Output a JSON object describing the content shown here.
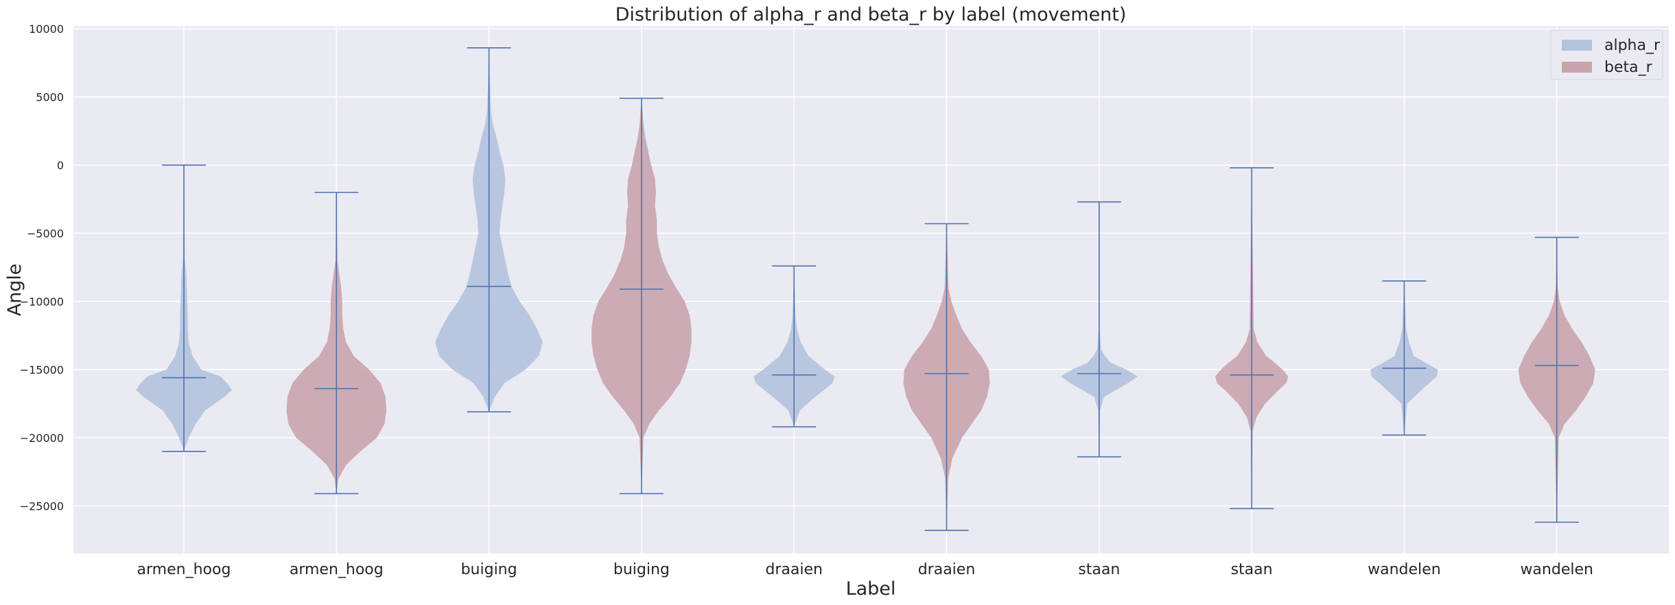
{
  "chart_data": {
    "type": "violin",
    "title": "Distribution of alpha_r and beta_r by label (movement)",
    "xlabel": "Label",
    "ylabel": "Angle",
    "ylim": [
      -28500,
      10200
    ],
    "yticks": [
      10000,
      5000,
      0,
      -5000,
      -10000,
      -15000,
      -20000,
      -25000
    ],
    "ytick_labels": [
      "10000",
      "5000",
      "0",
      "−5000",
      "−10000",
      "−15000",
      "−20000",
      "−25000"
    ],
    "categories": [
      "armen_hoog",
      "armen_hoog",
      "buiging",
      "buiging",
      "draaien",
      "draaien",
      "staan",
      "staan",
      "wandelen",
      "wandelen"
    ],
    "grid": true,
    "legend_position": "top-right",
    "series": [
      {
        "name": "alpha_r",
        "color": "#b4c2de",
        "violins": [
          {
            "position": 1,
            "min": -21000,
            "max": 0,
            "median": -15600,
            "profile": [
              [
                -21000,
                0
              ],
              [
                -20000,
                0.05
              ],
              [
                -19000,
                0.12
              ],
              [
                -18000,
                0.22
              ],
              [
                -17000,
                0.42
              ],
              [
                -16500,
                0.5
              ],
              [
                -16000,
                0.45
              ],
              [
                -15500,
                0.38
              ],
              [
                -15000,
                0.18
              ],
              [
                -14000,
                0.09
              ],
              [
                -13000,
                0.05
              ],
              [
                -12000,
                0.04
              ],
              [
                -11000,
                0.04
              ],
              [
                -10000,
                0.035
              ],
              [
                -9000,
                0.03
              ],
              [
                -8000,
                0.025
              ],
              [
                -7000,
                0.01
              ],
              [
                0,
                0
              ]
            ]
          },
          {
            "position": 3,
            "min": -18100,
            "max": 8600,
            "median": -8900,
            "profile": [
              [
                -18100,
                0
              ],
              [
                -17000,
                0.06
              ],
              [
                -16000,
                0.16
              ],
              [
                -15000,
                0.38
              ],
              [
                -14000,
                0.52
              ],
              [
                -13000,
                0.56
              ],
              [
                -12000,
                0.5
              ],
              [
                -11000,
                0.42
              ],
              [
                -10000,
                0.32
              ],
              [
                -9000,
                0.24
              ],
              [
                -8000,
                0.2
              ],
              [
                -7000,
                0.17
              ],
              [
                -6000,
                0.14
              ],
              [
                -5000,
                0.11
              ],
              [
                -4000,
                0.12
              ],
              [
                -3000,
                0.14
              ],
              [
                -2000,
                0.16
              ],
              [
                -1000,
                0.17
              ],
              [
                0,
                0.15
              ],
              [
                1000,
                0.11
              ],
              [
                2000,
                0.08
              ],
              [
                3000,
                0.04
              ],
              [
                4000,
                0.02
              ],
              [
                5000,
                0.015
              ],
              [
                6000,
                0.01
              ],
              [
                8600,
                0
              ]
            ]
          },
          {
            "position": 5,
            "min": -19200,
            "max": -7400,
            "median": -15400,
            "profile": [
              [
                -19200,
                0
              ],
              [
                -18000,
                0.06
              ],
              [
                -17000,
                0.22
              ],
              [
                -16000,
                0.4
              ],
              [
                -15500,
                0.42
              ],
              [
                -15000,
                0.32
              ],
              [
                -14000,
                0.15
              ],
              [
                -13000,
                0.07
              ],
              [
                -12000,
                0.03
              ],
              [
                -11000,
                0.015
              ],
              [
                -7400,
                0
              ]
            ]
          },
          {
            "position": 7,
            "min": -21400,
            "max": -2700,
            "median": -15300,
            "profile": [
              [
                -21400,
                0
              ],
              [
                -18000,
                0.01
              ],
              [
                -17000,
                0.05
              ],
              [
                -16000,
                0.3
              ],
              [
                -15500,
                0.4
              ],
              [
                -15000,
                0.28
              ],
              [
                -14500,
                0.12
              ],
              [
                -14000,
                0.06
              ],
              [
                -13500,
                0.02
              ],
              [
                -12000,
                0.005
              ],
              [
                -2700,
                0
              ]
            ]
          },
          {
            "position": 9,
            "min": -19800,
            "max": -8500,
            "median": -14900,
            "profile": [
              [
                -19800,
                0
              ],
              [
                -17500,
                0.03
              ],
              [
                -16500,
                0.18
              ],
              [
                -15500,
                0.34
              ],
              [
                -15000,
                0.35
              ],
              [
                -14500,
                0.22
              ],
              [
                -14000,
                0.1
              ],
              [
                -13000,
                0.05
              ],
              [
                -12000,
                0.02
              ],
              [
                -8500,
                0
              ]
            ]
          }
        ]
      },
      {
        "name": "beta_r",
        "color": "#c9a4ad",
        "violins": [
          {
            "position": 2,
            "min": -24100,
            "max": -2000,
            "median": -16400,
            "profile": [
              [
                -24100,
                0
              ],
              [
                -23000,
                0.02
              ],
              [
                -22000,
                0.1
              ],
              [
                -21000,
                0.25
              ],
              [
                -20000,
                0.42
              ],
              [
                -19000,
                0.5
              ],
              [
                -18000,
                0.52
              ],
              [
                -17000,
                0.51
              ],
              [
                -16000,
                0.46
              ],
              [
                -15000,
                0.34
              ],
              [
                -14000,
                0.18
              ],
              [
                -13000,
                0.1
              ],
              [
                -12000,
                0.07
              ],
              [
                -11000,
                0.06
              ],
              [
                -10000,
                0.06
              ],
              [
                -9000,
                0.05
              ],
              [
                -8000,
                0.03
              ],
              [
                -7000,
                0.01
              ],
              [
                -2000,
                0
              ]
            ]
          },
          {
            "position": 4,
            "min": -24100,
            "max": 4900,
            "median": -9100,
            "profile": [
              [
                -24100,
                0
              ],
              [
                -20000,
                0.02
              ],
              [
                -19000,
                0.08
              ],
              [
                -18000,
                0.18
              ],
              [
                -17000,
                0.3
              ],
              [
                -16000,
                0.4
              ],
              [
                -15000,
                0.46
              ],
              [
                -14000,
                0.5
              ],
              [
                -13000,
                0.52
              ],
              [
                -12000,
                0.52
              ],
              [
                -11000,
                0.5
              ],
              [
                -10000,
                0.45
              ],
              [
                -9000,
                0.36
              ],
              [
                -8000,
                0.28
              ],
              [
                -7000,
                0.22
              ],
              [
                -6000,
                0.18
              ],
              [
                -5000,
                0.16
              ],
              [
                -4000,
                0.16
              ],
              [
                -3000,
                0.14
              ],
              [
                -2000,
                0.15
              ],
              [
                -1000,
                0.14
              ],
              [
                0,
                0.1
              ],
              [
                1000,
                0.07
              ],
              [
                2000,
                0.04
              ],
              [
                3000,
                0.02
              ],
              [
                4900,
                0
              ]
            ]
          },
          {
            "position": 6,
            "min": -26800,
            "max": -4300,
            "median": -15300,
            "profile": [
              [
                -26800,
                0
              ],
              [
                -23000,
                0.015
              ],
              [
                -21500,
                0.06
              ],
              [
                -20000,
                0.16
              ],
              [
                -19000,
                0.26
              ],
              [
                -18000,
                0.36
              ],
              [
                -17000,
                0.42
              ],
              [
                -16000,
                0.45
              ],
              [
                -15000,
                0.44
              ],
              [
                -14000,
                0.36
              ],
              [
                -13000,
                0.25
              ],
              [
                -12000,
                0.16
              ],
              [
                -11000,
                0.1
              ],
              [
                -10000,
                0.05
              ],
              [
                -9000,
                0.02
              ],
              [
                -4300,
                0
              ]
            ]
          },
          {
            "position": 8,
            "min": -25200,
            "max": -200,
            "median": -15400,
            "profile": [
              [
                -25200,
                0
              ],
              [
                -19500,
                0.01
              ],
              [
                -18500,
                0.05
              ],
              [
                -17500,
                0.14
              ],
              [
                -16500,
                0.28
              ],
              [
                -16000,
                0.36
              ],
              [
                -15500,
                0.38
              ],
              [
                -15000,
                0.32
              ],
              [
                -14500,
                0.24
              ],
              [
                -14000,
                0.15
              ],
              [
                -13000,
                0.06
              ],
              [
                -12000,
                0.02
              ],
              [
                -200,
                0
              ]
            ]
          },
          {
            "position": 10,
            "min": -26200,
            "max": -5300,
            "median": -14700,
            "profile": [
              [
                -26200,
                0
              ],
              [
                -20000,
                0.02
              ],
              [
                -19000,
                0.08
              ],
              [
                -18000,
                0.2
              ],
              [
                -17000,
                0.3
              ],
              [
                -16000,
                0.38
              ],
              [
                -15000,
                0.4
              ],
              [
                -14000,
                0.34
              ],
              [
                -13000,
                0.26
              ],
              [
                -12000,
                0.16
              ],
              [
                -11000,
                0.08
              ],
              [
                -10000,
                0.03
              ],
              [
                -9000,
                0.01
              ],
              [
                -5300,
                0
              ]
            ]
          }
        ]
      }
    ],
    "line_color": "#4c72b0"
  }
}
